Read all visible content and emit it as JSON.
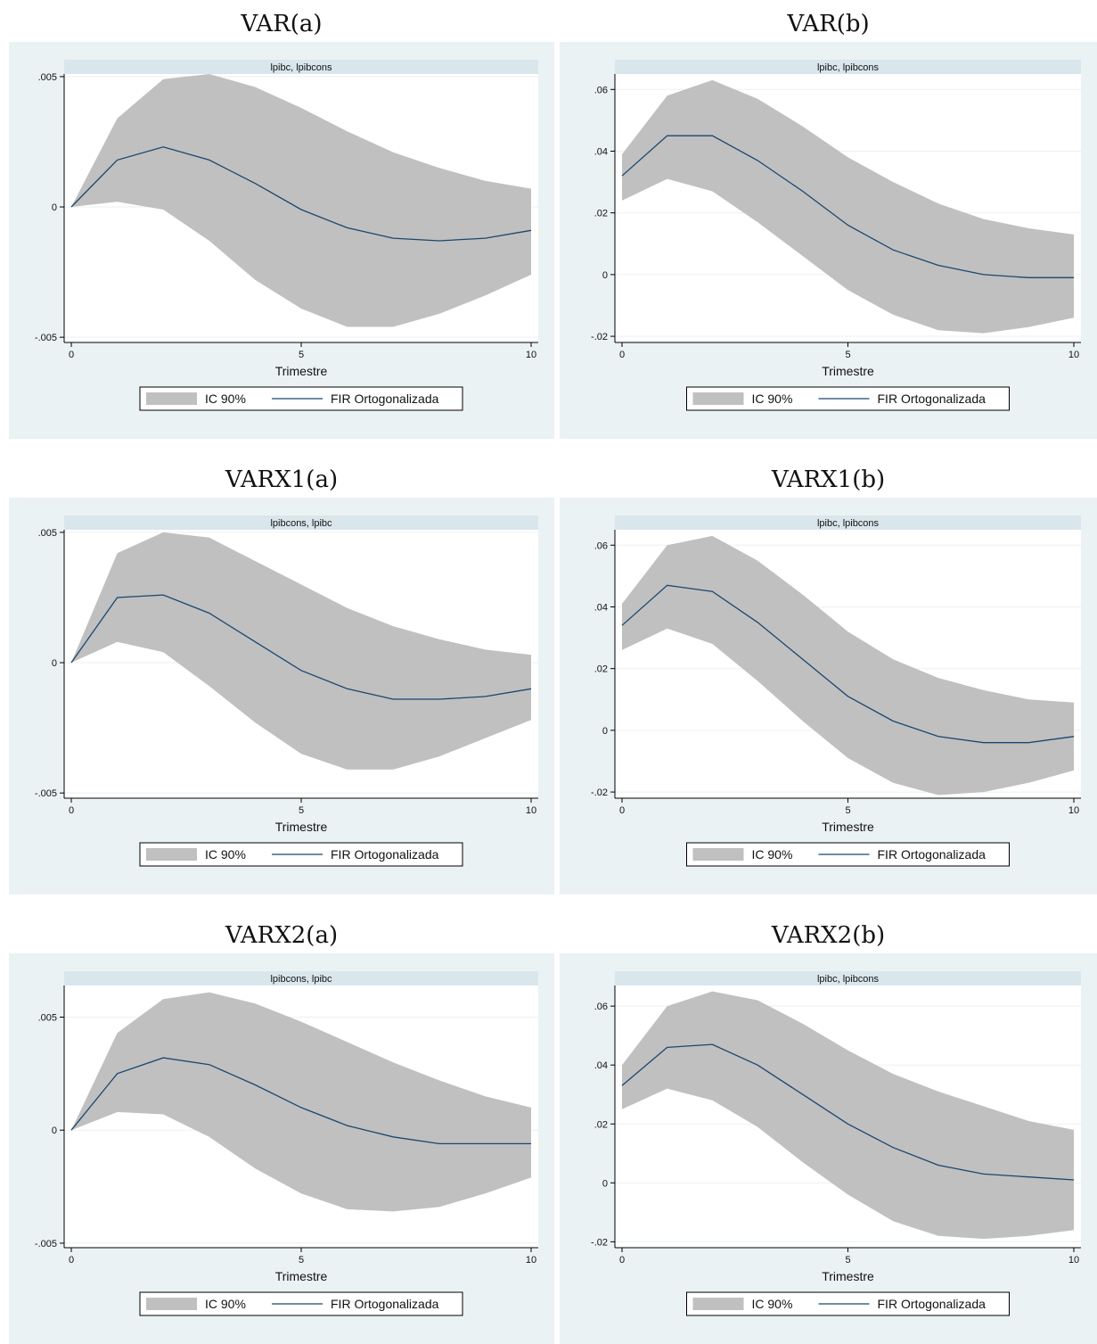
{
  "colors": {
    "background": "#eaf2f3",
    "plotregion": "#ffffff",
    "strip": "#d9e6ec",
    "ci_band": "#c0c0c0",
    "line": "#1a476f",
    "grid": "#eaf2f3",
    "text": "#111111"
  },
  "chart_data": [
    {
      "type": "area",
      "panel_title": "VAR(a)",
      "strip_label": "lpibc, lpibcons",
      "xlabel": "Trimestre",
      "x": [
        0,
        1,
        2,
        3,
        4,
        5,
        6,
        7,
        8,
        9,
        10
      ],
      "xticks": [
        0,
        5,
        10
      ],
      "xtick_labels": [
        "0",
        "5",
        "10"
      ],
      "ylim": [
        -0.0052,
        0.0051
      ],
      "yticks": [
        -0.005,
        0,
        0.005
      ],
      "ytick_labels": [
        "-.005",
        "0",
        ".005"
      ],
      "grid": true,
      "legend_position": "bottom",
      "legend": [
        "IC 90%",
        "FIR Ortogonalizada"
      ],
      "series": [
        {
          "name": "IC 90%",
          "lower": [
            0,
            0.0002,
            -0.0001,
            -0.0013,
            -0.0028,
            -0.0039,
            -0.0046,
            -0.0046,
            -0.0041,
            -0.0034,
            -0.0026
          ],
          "upper": [
            0,
            0.0034,
            0.0049,
            0.0051,
            0.0046,
            0.0038,
            0.0029,
            0.0021,
            0.0015,
            0.001,
            0.0007
          ]
        },
        {
          "name": "FIR Ortogonalizada",
          "values": [
            0,
            0.0018,
            0.0023,
            0.0018,
            0.0009,
            -0.0001,
            -0.0008,
            -0.0012,
            -0.0013,
            -0.0012,
            -0.0009
          ]
        }
      ]
    },
    {
      "type": "area",
      "panel_title": "VAR(b)",
      "strip_label": "lpibc, lpibcons",
      "xlabel": "Trimestre",
      "x": [
        0,
        1,
        2,
        3,
        4,
        5,
        6,
        7,
        8,
        9,
        10
      ],
      "xticks": [
        0,
        5,
        10
      ],
      "xtick_labels": [
        "0",
        "5",
        "10"
      ],
      "ylim": [
        -0.022,
        0.065
      ],
      "yticks": [
        -0.02,
        0,
        0.02,
        0.04,
        0.06
      ],
      "ytick_labels": [
        "-.02",
        "0",
        ".02",
        ".04",
        ".06"
      ],
      "grid": true,
      "legend_position": "bottom",
      "legend": [
        "IC 90%",
        "FIR Ortogonalizada"
      ],
      "series": [
        {
          "name": "IC 90%",
          "lower": [
            0.024,
            0.031,
            0.027,
            0.017,
            0.006,
            -0.005,
            -0.013,
            -0.018,
            -0.019,
            -0.017,
            -0.014
          ],
          "upper": [
            0.039,
            0.058,
            0.063,
            0.057,
            0.048,
            0.038,
            0.03,
            0.023,
            0.018,
            0.015,
            0.013
          ]
        },
        {
          "name": "FIR Ortogonalizada",
          "values": [
            0.032,
            0.045,
            0.045,
            0.037,
            0.027,
            0.016,
            0.008,
            0.003,
            0.0,
            -0.001,
            -0.001
          ]
        }
      ]
    },
    {
      "type": "area",
      "panel_title": "VARX1(a)",
      "strip_label": "lpibcons, lpibc",
      "xlabel": "Trimestre",
      "x": [
        0,
        1,
        2,
        3,
        4,
        5,
        6,
        7,
        8,
        9,
        10
      ],
      "xticks": [
        0,
        5,
        10
      ],
      "xtick_labels": [
        "0",
        "5",
        "10"
      ],
      "ylim": [
        -0.0052,
        0.0051
      ],
      "yticks": [
        -0.005,
        0,
        0.005
      ],
      "ytick_labels": [
        "-.005",
        "0",
        ".005"
      ],
      "grid": true,
      "legend_position": "bottom",
      "legend": [
        "IC 90%",
        "FIR Ortogonalizada"
      ],
      "series": [
        {
          "name": "IC 90%",
          "lower": [
            0,
            0.0008,
            0.0004,
            -0.0009,
            -0.0023,
            -0.0035,
            -0.0041,
            -0.0041,
            -0.0036,
            -0.0029,
            -0.0022
          ],
          "upper": [
            0,
            0.0042,
            0.005,
            0.0048,
            0.0039,
            0.003,
            0.0021,
            0.0014,
            0.0009,
            0.0005,
            0.0003
          ]
        },
        {
          "name": "FIR Ortogonalizada",
          "values": [
            0,
            0.0025,
            0.0026,
            0.0019,
            0.0008,
            -0.0003,
            -0.001,
            -0.0014,
            -0.0014,
            -0.0013,
            -0.001
          ]
        }
      ]
    },
    {
      "type": "area",
      "panel_title": "VARX1(b)",
      "strip_label": "lpibc, lpibcons",
      "xlabel": "Trimestre",
      "x": [
        0,
        1,
        2,
        3,
        4,
        5,
        6,
        7,
        8,
        9,
        10
      ],
      "xticks": [
        0,
        5,
        10
      ],
      "xtick_labels": [
        "0",
        "5",
        "10"
      ],
      "ylim": [
        -0.022,
        0.065
      ],
      "yticks": [
        -0.02,
        0,
        0.02,
        0.04,
        0.06
      ],
      "ytick_labels": [
        "-.02",
        "0",
        ".02",
        ".04",
        ".06"
      ],
      "grid": true,
      "legend_position": "bottom",
      "legend": [
        "IC 90%",
        "FIR Ortogonalizada"
      ],
      "series": [
        {
          "name": "IC 90%",
          "lower": [
            0.026,
            0.033,
            0.028,
            0.016,
            0.003,
            -0.009,
            -0.017,
            -0.021,
            -0.02,
            -0.017,
            -0.013
          ],
          "upper": [
            0.041,
            0.06,
            0.063,
            0.055,
            0.044,
            0.032,
            0.023,
            0.017,
            0.013,
            0.01,
            0.009
          ]
        },
        {
          "name": "FIR Ortogonalizada",
          "values": [
            0.034,
            0.047,
            0.045,
            0.035,
            0.023,
            0.011,
            0.003,
            -0.002,
            -0.004,
            -0.004,
            -0.002
          ]
        }
      ]
    },
    {
      "type": "area",
      "panel_title": "VARX2(a)",
      "strip_label": "lpibcons, lpibc",
      "xlabel": "Trimestre",
      "x": [
        0,
        1,
        2,
        3,
        4,
        5,
        6,
        7,
        8,
        9,
        10
      ],
      "xticks": [
        0,
        5,
        10
      ],
      "xtick_labels": [
        "0",
        "5",
        "10"
      ],
      "ylim": [
        -0.0052,
        0.0064
      ],
      "yticks": [
        -0.005,
        0,
        0.005
      ],
      "ytick_labels": [
        "-.005",
        "0",
        ".005"
      ],
      "grid": true,
      "legend_position": "bottom",
      "legend": [
        "IC 90%",
        "FIR Ortogonalizada"
      ],
      "series": [
        {
          "name": "IC 90%",
          "lower": [
            0,
            0.0008,
            0.0007,
            -0.0003,
            -0.0017,
            -0.0028,
            -0.0035,
            -0.0036,
            -0.0034,
            -0.0028,
            -0.0021
          ],
          "upper": [
            0,
            0.0043,
            0.0058,
            0.0061,
            0.0056,
            0.0048,
            0.0039,
            0.003,
            0.0022,
            0.0015,
            0.001
          ]
        },
        {
          "name": "FIR Ortogonalizada",
          "values": [
            0,
            0.0025,
            0.0032,
            0.0029,
            0.002,
            0.001,
            0.0002,
            -0.0003,
            -0.0006,
            -0.0006,
            -0.0006
          ]
        }
      ]
    },
    {
      "type": "area",
      "panel_title": "VARX2(b)",
      "strip_label": "lpibc, lpibcons",
      "xlabel": "Trimestre",
      "x": [
        0,
        1,
        2,
        3,
        4,
        5,
        6,
        7,
        8,
        9,
        10
      ],
      "xticks": [
        0,
        5,
        10
      ],
      "xtick_labels": [
        "0",
        "5",
        "10"
      ],
      "ylim": [
        -0.022,
        0.067
      ],
      "yticks": [
        -0.02,
        0,
        0.02,
        0.04,
        0.06
      ],
      "ytick_labels": [
        "-.02",
        "0",
        ".02",
        ".04",
        ".06"
      ],
      "grid": true,
      "legend_position": "bottom",
      "legend": [
        "IC 90%",
        "FIR Ortogonalizada"
      ],
      "series": [
        {
          "name": "IC 90%",
          "lower": [
            0.025,
            0.032,
            0.028,
            0.019,
            0.007,
            -0.004,
            -0.013,
            -0.018,
            -0.019,
            -0.018,
            -0.016
          ],
          "upper": [
            0.04,
            0.06,
            0.065,
            0.062,
            0.054,
            0.045,
            0.037,
            0.031,
            0.026,
            0.021,
            0.018
          ]
        },
        {
          "name": "FIR Ortogonalizada",
          "values": [
            0.033,
            0.046,
            0.047,
            0.04,
            0.03,
            0.02,
            0.012,
            0.006,
            0.003,
            0.002,
            0.001
          ]
        }
      ]
    }
  ]
}
